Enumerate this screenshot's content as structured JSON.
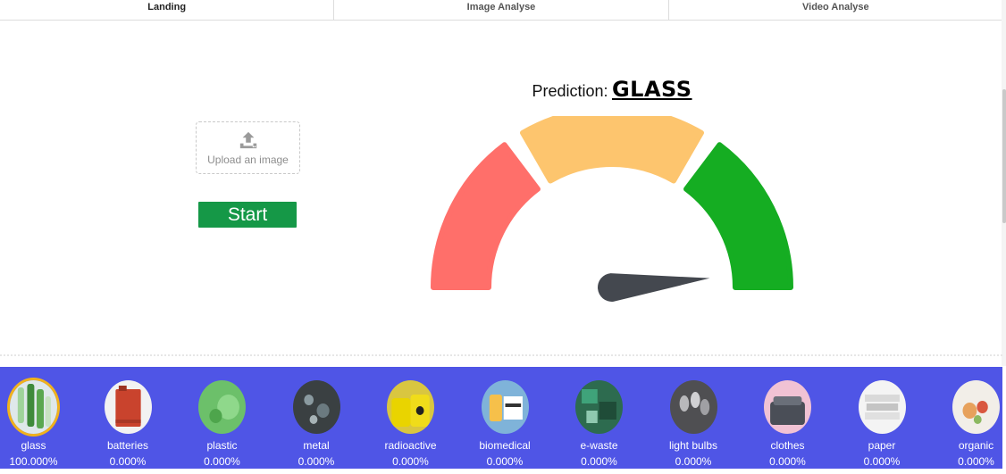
{
  "tabs": [
    {
      "label": "Landing"
    },
    {
      "label": "Image Analyse"
    },
    {
      "label": "Video Analyse"
    }
  ],
  "upload": {
    "label": "Upload an image",
    "icon": "upload-icon"
  },
  "start_button": {
    "label": "Start"
  },
  "prediction": {
    "label": "Prediction:",
    "value": "GLASS"
  },
  "gauge": {
    "segments": [
      {
        "color": "#ff6f6a"
      },
      {
        "color": "#fdc56e"
      },
      {
        "color": "#15ad22"
      }
    ],
    "needle_color": "#44484f",
    "needle_level": 0.97
  },
  "classes": [
    {
      "name": "glass",
      "pct": "100.000%",
      "selected": true
    },
    {
      "name": "batteries",
      "pct": "0.000%"
    },
    {
      "name": "plastic",
      "pct": "0.000%"
    },
    {
      "name": "metal",
      "pct": "0.000%"
    },
    {
      "name": "radioactive",
      "pct": "0.000%"
    },
    {
      "name": "biomedical",
      "pct": "0.000%"
    },
    {
      "name": "e-waste",
      "pct": "0.000%"
    },
    {
      "name": "light bulbs",
      "pct": "0.000%"
    },
    {
      "name": "clothes",
      "pct": "0.000%"
    },
    {
      "name": "paper",
      "pct": "0.000%"
    },
    {
      "name": "organic",
      "pct": "0.000%"
    }
  ],
  "colors": {
    "strip_bg": "#4f55e6",
    "start_bg": "#159847",
    "selected_ring": "#f0b21c"
  }
}
